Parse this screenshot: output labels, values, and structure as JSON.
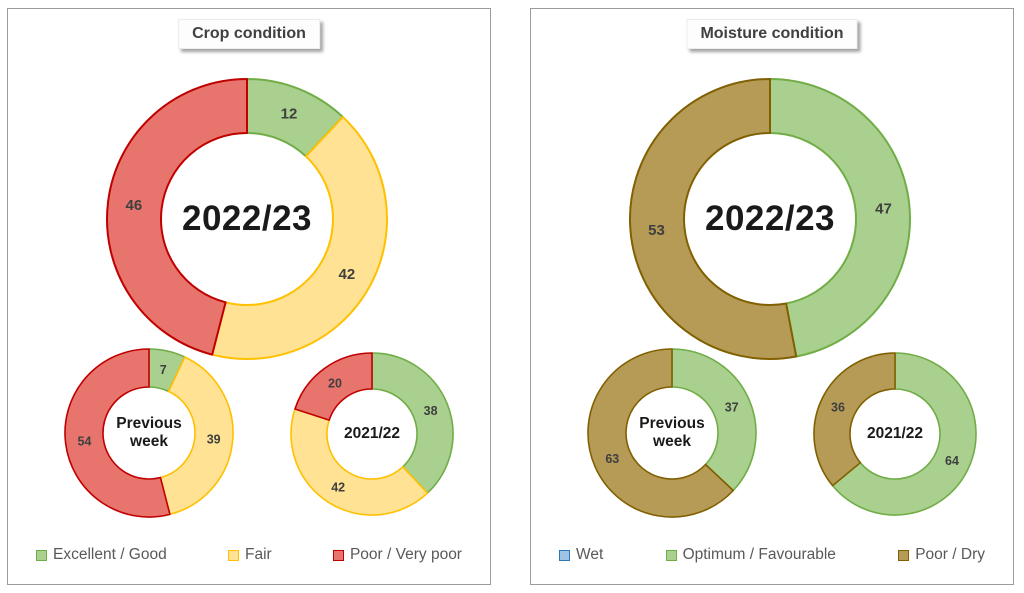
{
  "colors": {
    "green": {
      "fill": "#A9D08E",
      "stroke": "#71AD47"
    },
    "yellow": {
      "fill": "#FFE293",
      "stroke": "#FFC000"
    },
    "red": {
      "fill": "#E8756D",
      "stroke": "#C00000"
    },
    "brown": {
      "fill": "#B69B57",
      "stroke": "#806000"
    },
    "blue": {
      "fill": "#9DC3E6",
      "stroke": "#2E75B6"
    }
  },
  "panels": [
    {
      "title": "Crop condition",
      "legend": [
        {
          "label": "Excellent / Good",
          "color": "green"
        },
        {
          "label": "Fair",
          "color": "yellow"
        },
        {
          "label": "Poor / Very poor",
          "color": "red"
        }
      ]
    },
    {
      "title": "Moisture condition",
      "legend": [
        {
          "label": "Wet",
          "color": "blue"
        },
        {
          "label": "Optimum / Favourable",
          "color": "green"
        },
        {
          "label": "Poor / Dry",
          "color": "brown"
        }
      ]
    }
  ],
  "chart_data": [
    {
      "type": "pie",
      "subtype": "donut",
      "panel": "Crop condition",
      "center_label": "2022/23",
      "segments": [
        {
          "name": "Excellent / Good",
          "value": 12,
          "color": "green"
        },
        {
          "name": "Fair",
          "value": 42,
          "color": "yellow"
        },
        {
          "name": "Poor / Very poor",
          "value": 46,
          "color": "red"
        }
      ]
    },
    {
      "type": "pie",
      "subtype": "donut",
      "panel": "Crop condition",
      "center_label": "Previous week",
      "segments": [
        {
          "name": "Excellent / Good",
          "value": 7,
          "color": "green"
        },
        {
          "name": "Fair",
          "value": 39,
          "color": "yellow"
        },
        {
          "name": "Poor / Very poor",
          "value": 54,
          "color": "red"
        }
      ]
    },
    {
      "type": "pie",
      "subtype": "donut",
      "panel": "Crop condition",
      "center_label": "2021/22",
      "segments": [
        {
          "name": "Excellent / Good",
          "value": 38,
          "color": "green"
        },
        {
          "name": "Fair",
          "value": 42,
          "color": "yellow"
        },
        {
          "name": "Poor / Very poor",
          "value": 20,
          "color": "red"
        }
      ]
    },
    {
      "type": "pie",
      "subtype": "donut",
      "panel": "Moisture condition",
      "center_label": "2022/23",
      "segments": [
        {
          "name": "Optimum / Favourable",
          "value": 47,
          "color": "green"
        },
        {
          "name": "Poor / Dry",
          "value": 53,
          "color": "brown"
        }
      ]
    },
    {
      "type": "pie",
      "subtype": "donut",
      "panel": "Moisture condition",
      "center_label": "Previous week",
      "segments": [
        {
          "name": "Optimum / Favourable",
          "value": 37,
          "color": "green"
        },
        {
          "name": "Poor / Dry",
          "value": 63,
          "color": "brown"
        }
      ]
    },
    {
      "type": "pie",
      "subtype": "donut",
      "panel": "Moisture condition",
      "center_label": "2021/22",
      "segments": [
        {
          "name": "Optimum / Favourable",
          "value": 64,
          "color": "green"
        },
        {
          "name": "Poor / Dry",
          "value": 36,
          "color": "brown"
        }
      ]
    }
  ]
}
